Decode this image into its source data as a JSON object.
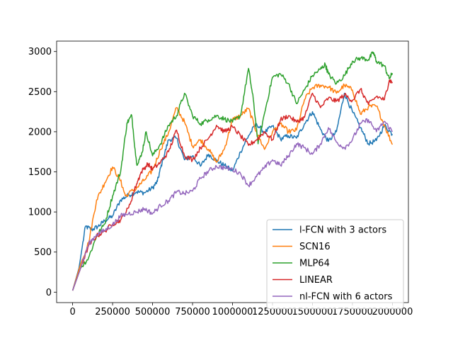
{
  "chart_data": {
    "type": "line",
    "title": "",
    "xlabel": "",
    "ylabel": "",
    "xlim": [
      -100000,
      2100000
    ],
    "ylim": [
      -130,
      3130
    ],
    "x_ticks": [
      0,
      250000,
      500000,
      750000,
      1000000,
      1250000,
      1500000,
      1750000,
      2000000
    ],
    "x_tick_labels": [
      "0",
      "250000",
      "500000",
      "750000",
      "1000000",
      "1250000",
      "1500000",
      "1750000",
      "2000000"
    ],
    "y_ticks": [
      0,
      500,
      1000,
      1500,
      2000,
      2500,
      3000
    ],
    "y_tick_labels": [
      "0",
      "500",
      "1000",
      "1500",
      "2000",
      "2500",
      "3000"
    ],
    "grid": false,
    "legend_position": "lower-right",
    "series": [
      {
        "name": "l-FCN with 3 actors",
        "color": "#1f77b4",
        "points": [
          [
            0,
            20
          ],
          [
            40000,
            300
          ],
          [
            80000,
            820
          ],
          [
            120000,
            780
          ],
          [
            160000,
            820
          ],
          [
            200000,
            890
          ],
          [
            250000,
            950
          ],
          [
            300000,
            1150
          ],
          [
            350000,
            1210
          ],
          [
            400000,
            1250
          ],
          [
            450000,
            1240
          ],
          [
            500000,
            1300
          ],
          [
            530000,
            1380
          ],
          [
            560000,
            1620
          ],
          [
            600000,
            1900
          ],
          [
            650000,
            1920
          ],
          [
            700000,
            1650
          ],
          [
            750000,
            1700
          ],
          [
            800000,
            1570
          ],
          [
            850000,
            1720
          ],
          [
            900000,
            1640
          ],
          [
            950000,
            1580
          ],
          [
            1000000,
            1510
          ],
          [
            1050000,
            1750
          ],
          [
            1100000,
            1950
          ],
          [
            1150000,
            2100
          ],
          [
            1200000,
            1990
          ],
          [
            1250000,
            2070
          ],
          [
            1300000,
            1910
          ],
          [
            1350000,
            1950
          ],
          [
            1400000,
            1920
          ],
          [
            1450000,
            2100
          ],
          [
            1500000,
            2250
          ],
          [
            1550000,
            2030
          ],
          [
            1600000,
            1880
          ],
          [
            1650000,
            2000
          ],
          [
            1700000,
            2480
          ],
          [
            1750000,
            2250
          ],
          [
            1800000,
            2050
          ],
          [
            1850000,
            1850
          ],
          [
            1900000,
            1890
          ],
          [
            1950000,
            2080
          ],
          [
            2000000,
            1970
          ]
        ]
      },
      {
        "name": "SCN16",
        "color": "#ff7f0e",
        "points": [
          [
            0,
            20
          ],
          [
            50000,
            350
          ],
          [
            100000,
            620
          ],
          [
            150000,
            1150
          ],
          [
            200000,
            1360
          ],
          [
            250000,
            1560
          ],
          [
            300000,
            1390
          ],
          [
            330000,
            1200
          ],
          [
            400000,
            1300
          ],
          [
            450000,
            1400
          ],
          [
            500000,
            1520
          ],
          [
            550000,
            1780
          ],
          [
            600000,
            1990
          ],
          [
            650000,
            2300
          ],
          [
            700000,
            2120
          ],
          [
            750000,
            1820
          ],
          [
            800000,
            1900
          ],
          [
            850000,
            1780
          ],
          [
            900000,
            1620
          ],
          [
            950000,
            1790
          ],
          [
            1000000,
            2150
          ],
          [
            1050000,
            2200
          ],
          [
            1100000,
            2290
          ],
          [
            1150000,
            2000
          ],
          [
            1200000,
            1780
          ],
          [
            1250000,
            2000
          ],
          [
            1300000,
            2100
          ],
          [
            1350000,
            2000
          ],
          [
            1400000,
            2020
          ],
          [
            1450000,
            2400
          ],
          [
            1500000,
            2550
          ],
          [
            1550000,
            2580
          ],
          [
            1600000,
            2560
          ],
          [
            1650000,
            2480
          ],
          [
            1700000,
            2580
          ],
          [
            1750000,
            2520
          ],
          [
            1800000,
            2220
          ],
          [
            1850000,
            2310
          ],
          [
            1900000,
            2320
          ],
          [
            1950000,
            2080
          ],
          [
            2000000,
            1840
          ]
        ]
      },
      {
        "name": "MLP64",
        "color": "#2ca02c",
        "points": [
          [
            0,
            20
          ],
          [
            50000,
            300
          ],
          [
            100000,
            430
          ],
          [
            150000,
            700
          ],
          [
            200000,
            850
          ],
          [
            250000,
            1200
          ],
          [
            300000,
            1500
          ],
          [
            340000,
            2110
          ],
          [
            370000,
            2200
          ],
          [
            400000,
            1600
          ],
          [
            430000,
            1700
          ],
          [
            460000,
            2000
          ],
          [
            500000,
            1700
          ],
          [
            550000,
            1850
          ],
          [
            600000,
            2080
          ],
          [
            650000,
            2200
          ],
          [
            700000,
            2480
          ],
          [
            750000,
            2200
          ],
          [
            800000,
            2100
          ],
          [
            850000,
            2150
          ],
          [
            900000,
            2200
          ],
          [
            950000,
            2160
          ],
          [
            1000000,
            2120
          ],
          [
            1050000,
            2200
          ],
          [
            1100000,
            2790
          ],
          [
            1130000,
            2400
          ],
          [
            1160000,
            1850
          ],
          [
            1200000,
            2230
          ],
          [
            1250000,
            2680
          ],
          [
            1300000,
            2720
          ],
          [
            1350000,
            2600
          ],
          [
            1400000,
            2350
          ],
          [
            1450000,
            2520
          ],
          [
            1500000,
            2700
          ],
          [
            1550000,
            2780
          ],
          [
            1580000,
            2840
          ],
          [
            1600000,
            2720
          ],
          [
            1650000,
            2600
          ],
          [
            1700000,
            2700
          ],
          [
            1750000,
            2880
          ],
          [
            1800000,
            2920
          ],
          [
            1850000,
            2900
          ],
          [
            1880000,
            2990
          ],
          [
            1900000,
            2880
          ],
          [
            1950000,
            2820
          ],
          [
            1980000,
            2660
          ],
          [
            2000000,
            2730
          ]
        ]
      },
      {
        "name": "LINEAR",
        "color": "#d62728",
        "points": [
          [
            0,
            20
          ],
          [
            50000,
            300
          ],
          [
            100000,
            580
          ],
          [
            150000,
            700
          ],
          [
            200000,
            760
          ],
          [
            250000,
            850
          ],
          [
            300000,
            900
          ],
          [
            350000,
            1050
          ],
          [
            400000,
            1350
          ],
          [
            430000,
            1500
          ],
          [
            470000,
            1600
          ],
          [
            500000,
            1530
          ],
          [
            550000,
            1620
          ],
          [
            600000,
            1750
          ],
          [
            650000,
            2020
          ],
          [
            700000,
            1700
          ],
          [
            750000,
            1650
          ],
          [
            800000,
            1800
          ],
          [
            850000,
            1920
          ],
          [
            900000,
            2080
          ],
          [
            950000,
            2000
          ],
          [
            1000000,
            2060
          ],
          [
            1050000,
            1950
          ],
          [
            1100000,
            1830
          ],
          [
            1150000,
            1900
          ],
          [
            1200000,
            2000
          ],
          [
            1250000,
            1900
          ],
          [
            1300000,
            2150
          ],
          [
            1350000,
            2200
          ],
          [
            1400000,
            2120
          ],
          [
            1450000,
            2180
          ],
          [
            1500000,
            2480
          ],
          [
            1550000,
            2300
          ],
          [
            1600000,
            2420
          ],
          [
            1650000,
            2380
          ],
          [
            1700000,
            2460
          ],
          [
            1750000,
            2390
          ],
          [
            1800000,
            2530
          ],
          [
            1850000,
            2340
          ],
          [
            1900000,
            2440
          ],
          [
            1950000,
            2400
          ],
          [
            1980000,
            2640
          ],
          [
            2000000,
            2620
          ]
        ]
      },
      {
        "name": "nl-FCN with 6 actors",
        "color": "#9467bd",
        "points": [
          [
            0,
            20
          ],
          [
            50000,
            300
          ],
          [
            100000,
            600
          ],
          [
            150000,
            720
          ],
          [
            200000,
            770
          ],
          [
            250000,
            840
          ],
          [
            300000,
            950
          ],
          [
            350000,
            980
          ],
          [
            400000,
            1000
          ],
          [
            450000,
            1040
          ],
          [
            500000,
            980
          ],
          [
            550000,
            1080
          ],
          [
            600000,
            1140
          ],
          [
            650000,
            1250
          ],
          [
            700000,
            1230
          ],
          [
            750000,
            1260
          ],
          [
            800000,
            1420
          ],
          [
            850000,
            1510
          ],
          [
            900000,
            1570
          ],
          [
            950000,
            1550
          ],
          [
            1000000,
            1530
          ],
          [
            1050000,
            1480
          ],
          [
            1100000,
            1330
          ],
          [
            1150000,
            1440
          ],
          [
            1200000,
            1550
          ],
          [
            1250000,
            1650
          ],
          [
            1300000,
            1580
          ],
          [
            1350000,
            1700
          ],
          [
            1400000,
            1850
          ],
          [
            1450000,
            1800
          ],
          [
            1500000,
            1720
          ],
          [
            1550000,
            1850
          ],
          [
            1600000,
            2050
          ],
          [
            1650000,
            1870
          ],
          [
            1700000,
            1800
          ],
          [
            1750000,
            1900
          ],
          [
            1800000,
            2100
          ],
          [
            1850000,
            2150
          ],
          [
            1900000,
            2000
          ],
          [
            1950000,
            2130
          ],
          [
            2000000,
            2000
          ]
        ]
      }
    ]
  }
}
